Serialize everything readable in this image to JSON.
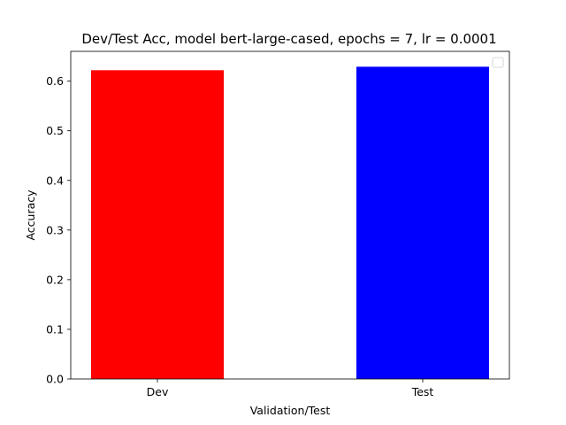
{
  "chart_data": {
    "type": "bar",
    "title": "Dev/Test Acc, model bert-large-cased, epochs = 7, lr = 0.0001",
    "xlabel": "Validation/Test",
    "ylabel": "Accuracy",
    "categories": [
      "Dev",
      "Test"
    ],
    "values": [
      0.622,
      0.629
    ],
    "colors": [
      "#ff0000",
      "#0000ff"
    ],
    "ylim": [
      0,
      0.66
    ],
    "yticks": [
      0.0,
      0.1,
      0.2,
      0.3,
      0.4,
      0.5,
      0.6
    ],
    "ytick_labels": [
      "0.0",
      "0.1",
      "0.2",
      "0.3",
      "0.4",
      "0.5",
      "0.6"
    ],
    "grid": false,
    "legend": {
      "position": "top-right",
      "entries": []
    }
  }
}
